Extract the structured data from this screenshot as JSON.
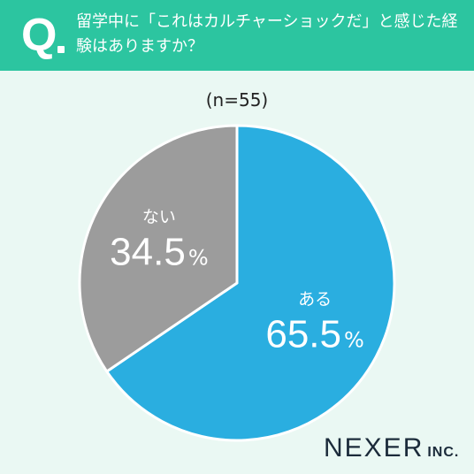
{
  "header": {
    "q_mark": "Q",
    "question": "留学中に「これはカルチャーショックだ」と感じた経験はありますか？",
    "background_color": "#2cc5a0"
  },
  "sample_size": "(n=55)",
  "chart_data": {
    "type": "pie",
    "slices": [
      {
        "label": "ある",
        "value": 65.5,
        "display_value": "65.5",
        "unit": "%",
        "color": "#2aaee0"
      },
      {
        "label": "ない",
        "value": 34.5,
        "display_value": "34.5",
        "unit": "%",
        "color": "#9c9c9c"
      }
    ],
    "start": "12 o'clock",
    "direction": "clockwise",
    "border_color": "#ffffff"
  },
  "logo": {
    "main": "NEXER",
    "sub": "INC."
  }
}
